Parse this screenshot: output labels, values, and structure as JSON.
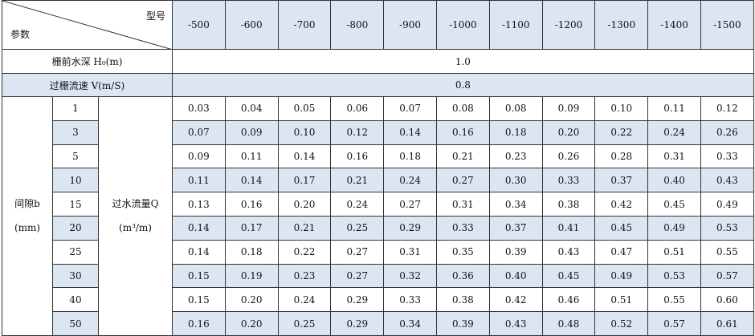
{
  "header": {
    "corner_top": "型号",
    "corner_bottom": "参数",
    "models": [
      "-500",
      "-600",
      "-700",
      "-800",
      "-900",
      "-1000",
      "-1100",
      "-1200",
      "-1300",
      "-1400",
      "-1500"
    ]
  },
  "rows": [
    {
      "label": "栅前水深 H₀(m)",
      "value": "1.0"
    },
    {
      "label": "过栅流速 V(m/S)",
      "value": "0.8"
    }
  ],
  "gap": {
    "label": "间隙b",
    "unit": "(mm)"
  },
  "flow": {
    "label": "过水流量Q",
    "unit": "(m³/m)"
  },
  "data": [
    {
      "gap": "1",
      "values": [
        "0.03",
        "0.04",
        "0.05",
        "0.06",
        "0.07",
        "0.08",
        "0.08",
        "0.09",
        "0.10",
        "0.11",
        "0.12"
      ]
    },
    {
      "gap": "3",
      "values": [
        "0.07",
        "0.09",
        "0.10",
        "0.12",
        "0.14",
        "0.16",
        "0.18",
        "0.20",
        "0.22",
        "0.24",
        "0.26"
      ]
    },
    {
      "gap": "5",
      "values": [
        "0.09",
        "0.11",
        "0.14",
        "0.16",
        "0.18",
        "0.21",
        "0.23",
        "0.26",
        "0.28",
        "0.31",
        "0.33"
      ]
    },
    {
      "gap": "10",
      "values": [
        "0.11",
        "0.14",
        "0.17",
        "0.21",
        "0.24",
        "0.27",
        "0.30",
        "0.33",
        "0.37",
        "0.40",
        "0.43"
      ]
    },
    {
      "gap": "15",
      "values": [
        "0.13",
        "0.16",
        "0.20",
        "0.24",
        "0.27",
        "0.31",
        "0.34",
        "0.38",
        "0.42",
        "0.45",
        "0.49"
      ]
    },
    {
      "gap": "20",
      "values": [
        "0.14",
        "0.17",
        "0.21",
        "0.25",
        "0.29",
        "0.33",
        "0.37",
        "0.41",
        "0.45",
        "0.49",
        "0.53"
      ]
    },
    {
      "gap": "25",
      "values": [
        "0.14",
        "0.18",
        "0.22",
        "0.27",
        "0.31",
        "0.35",
        "0.39",
        "0.43",
        "0.47",
        "0.51",
        "0.55"
      ]
    },
    {
      "gap": "30",
      "values": [
        "0.15",
        "0.19",
        "0.23",
        "0.27",
        "0.32",
        "0.36",
        "0.40",
        "0.45",
        "0.49",
        "0.53",
        "0.57"
      ]
    },
    {
      "gap": "40",
      "values": [
        "0.15",
        "0.20",
        "0.24",
        "0.29",
        "0.33",
        "0.38",
        "0.42",
        "0.46",
        "0.51",
        "0.55",
        "0.60"
      ]
    },
    {
      "gap": "50",
      "values": [
        "0.16",
        "0.20",
        "0.25",
        "0.29",
        "0.34",
        "0.39",
        "0.43",
        "0.48",
        "0.52",
        "0.57",
        "0.61"
      ]
    }
  ]
}
